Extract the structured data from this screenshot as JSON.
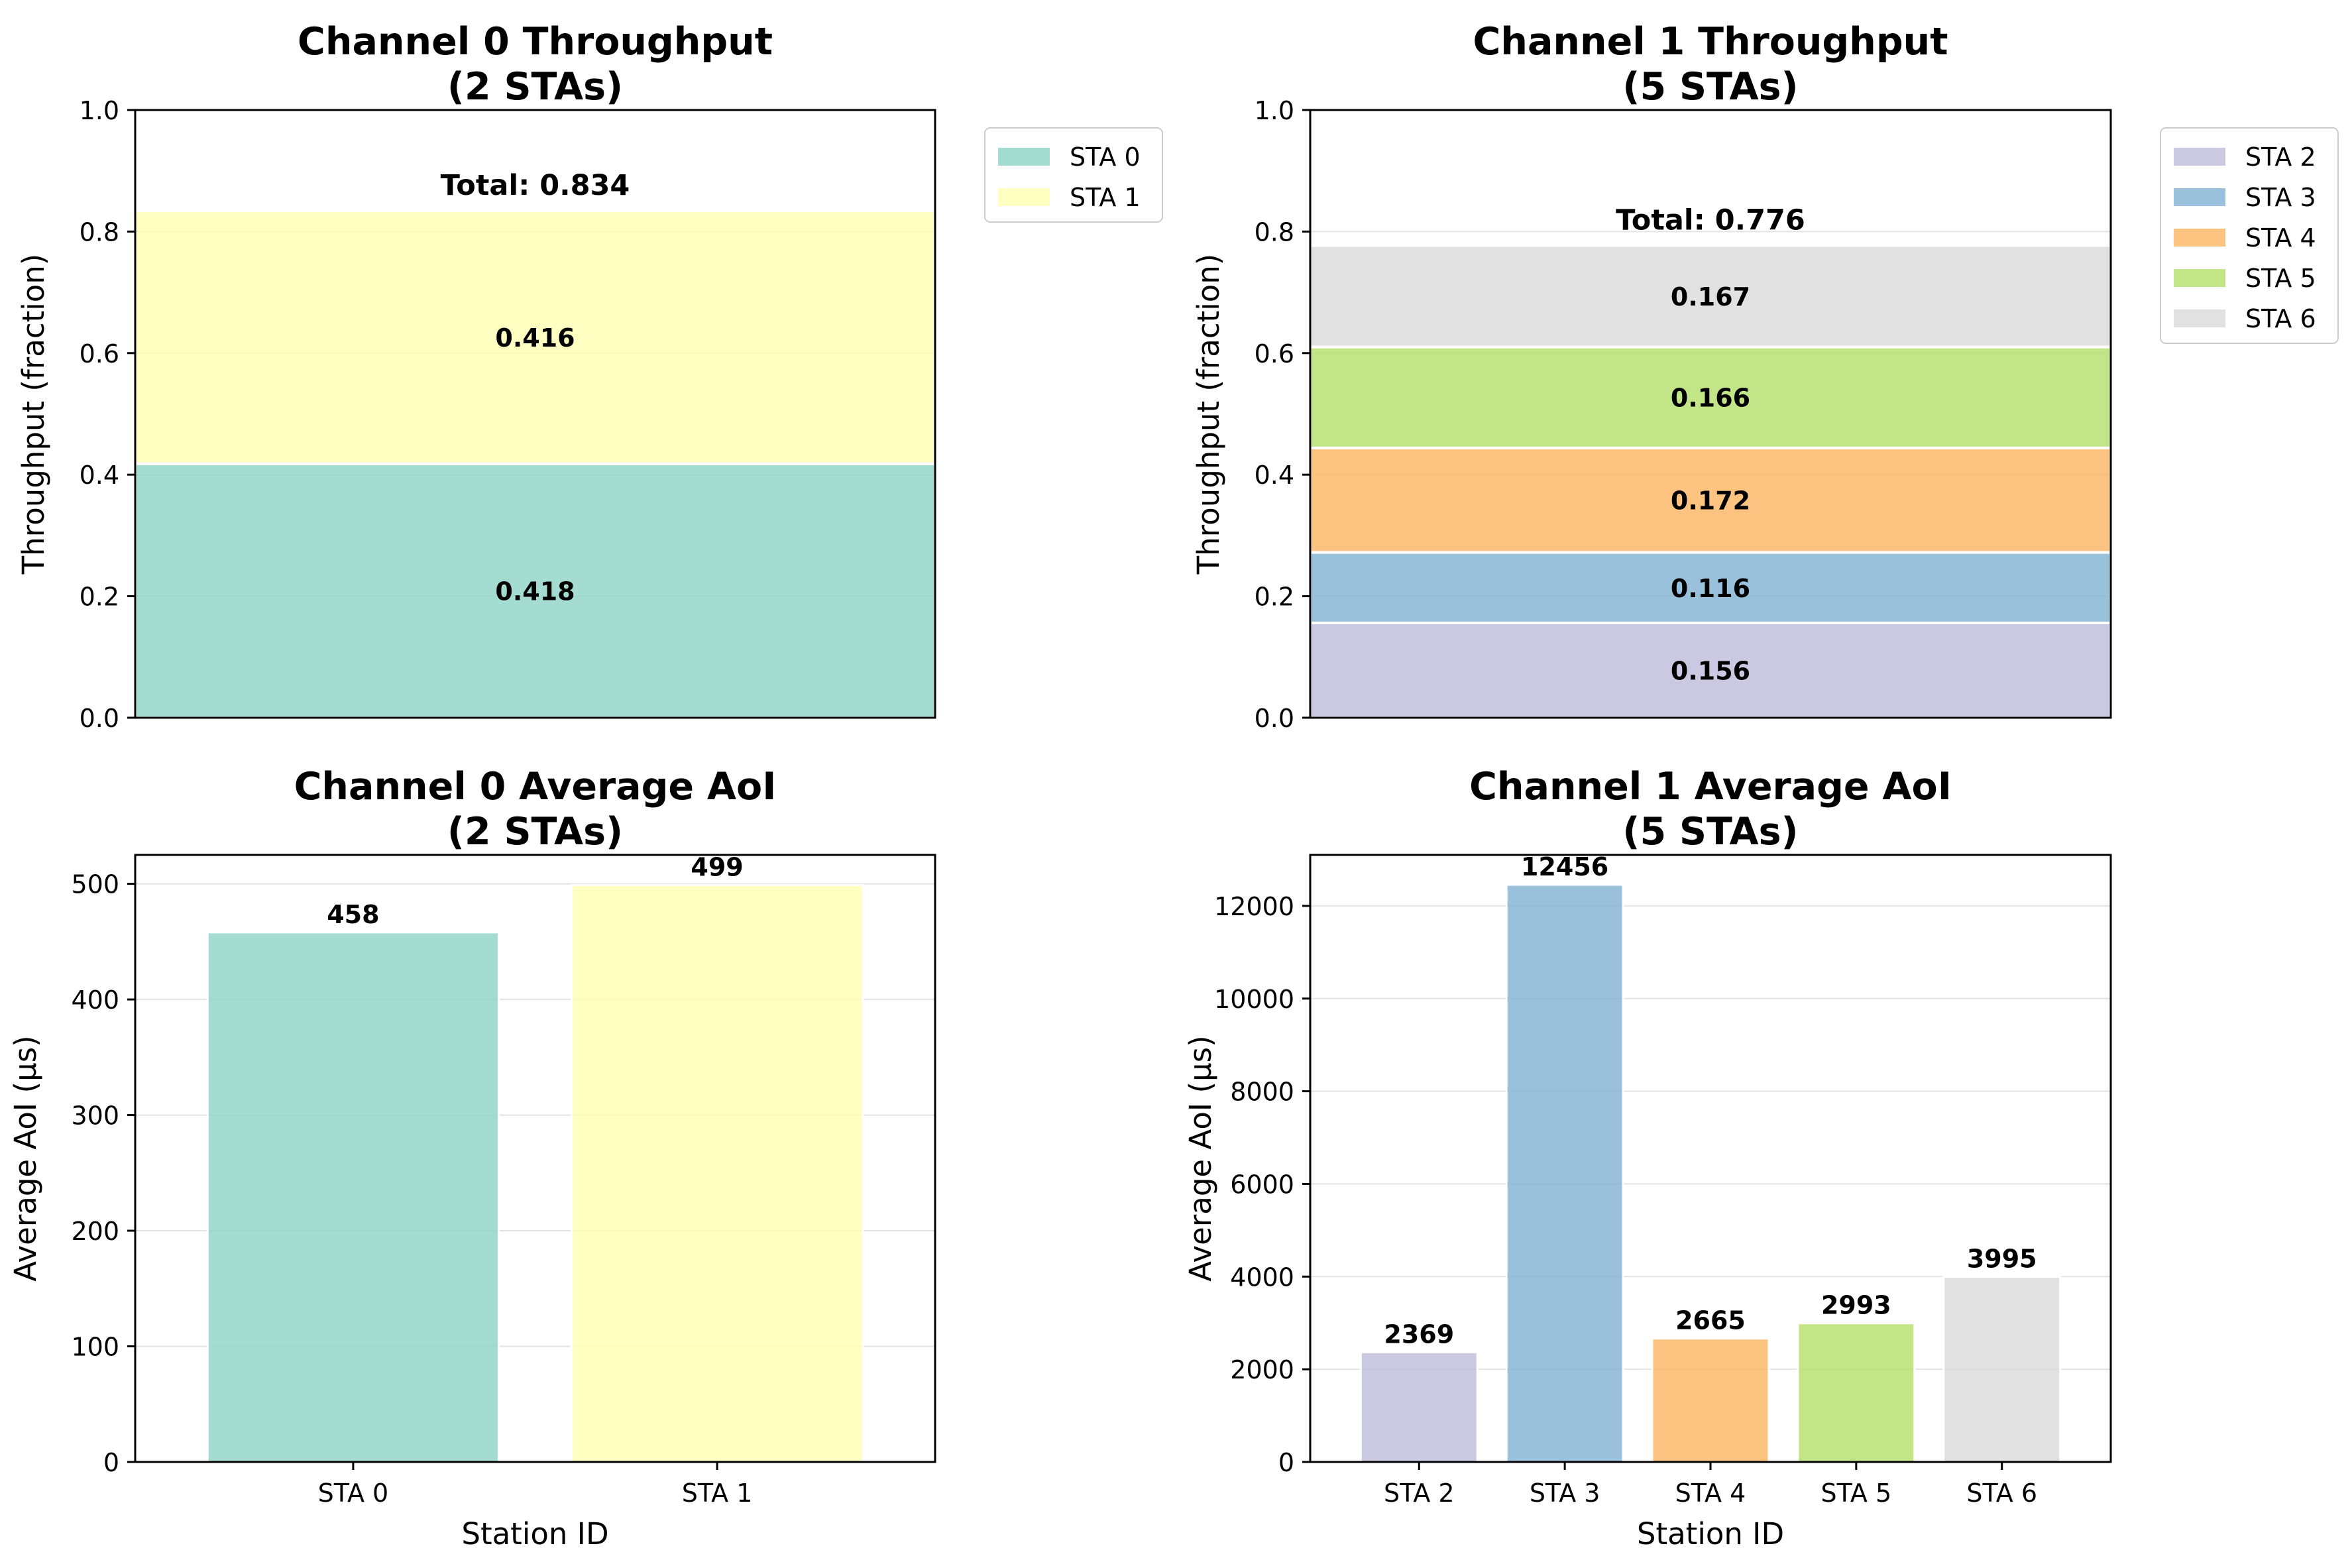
{
  "colors": {
    "STA 0": "#8dd3c7",
    "STA 1": "#ffffb3",
    "STA 2": "#bebada",
    "STA 3": "#80b1d3",
    "STA 4": "#fdb462",
    "STA 5": "#b3de69",
    "STA 6": "#d9d9d9"
  },
  "chart_data": [
    {
      "id": "ch0_tp",
      "type": "bar",
      "stacked": true,
      "title": "Channel 0 Throughput\n(2 STAs)",
      "xlabel": "",
      "ylabel": "Throughput (fraction)",
      "ylim": [
        0,
        1.0
      ],
      "yticks": [
        0.0,
        0.2,
        0.4,
        0.6,
        0.8,
        1.0
      ],
      "ytick_labels": [
        "0.0",
        "0.2",
        "0.4",
        "0.6",
        "0.8",
        "1.0"
      ],
      "grid": true,
      "legend": "outside-top-right",
      "series": [
        {
          "name": "STA 0",
          "value": 0.418,
          "label": "0.418"
        },
        {
          "name": "STA 1",
          "value": 0.416,
          "label": "0.416"
        }
      ],
      "total_label": "Total: 0.834"
    },
    {
      "id": "ch1_tp",
      "type": "bar",
      "stacked": true,
      "title": "Channel 1 Throughput\n(5 STAs)",
      "xlabel": "",
      "ylabel": "Throughput (fraction)",
      "ylim": [
        0,
        1.0
      ],
      "yticks": [
        0.0,
        0.2,
        0.4,
        0.6,
        0.8,
        1.0
      ],
      "ytick_labels": [
        "0.0",
        "0.2",
        "0.4",
        "0.6",
        "0.8",
        "1.0"
      ],
      "grid": true,
      "legend": "outside-top-right",
      "series": [
        {
          "name": "STA 2",
          "value": 0.156,
          "label": "0.156"
        },
        {
          "name": "STA 3",
          "value": 0.116,
          "label": "0.116"
        },
        {
          "name": "STA 4",
          "value": 0.172,
          "label": "0.172"
        },
        {
          "name": "STA 5",
          "value": 0.166,
          "label": "0.166"
        },
        {
          "name": "STA 6",
          "value": 0.167,
          "label": "0.167"
        }
      ],
      "total_label": "Total: 0.776"
    },
    {
      "id": "ch0_aoi",
      "type": "bar",
      "title": "Channel 0 Average AoI\n(2 STAs)",
      "xlabel": "Station ID",
      "ylabel": "Average AoI (μs)",
      "ylim": [
        0,
        525
      ],
      "yticks": [
        0,
        100,
        200,
        300,
        400,
        500
      ],
      "ytick_labels": [
        "0",
        "100",
        "200",
        "300",
        "400",
        "500"
      ],
      "grid": true,
      "categories": [
        "STA 0",
        "STA 1"
      ],
      "values": [
        458,
        499
      ],
      "value_labels": [
        "458",
        "499"
      ]
    },
    {
      "id": "ch1_aoi",
      "type": "bar",
      "title": "Channel 1 Average AoI\n(5 STAs)",
      "xlabel": "Station ID",
      "ylabel": "Average AoI (μs)",
      "ylim": [
        0,
        13100
      ],
      "yticks": [
        0,
        2000,
        4000,
        6000,
        8000,
        10000,
        12000
      ],
      "ytick_labels": [
        "0",
        "2000",
        "4000",
        "6000",
        "8000",
        "10000",
        "12000"
      ],
      "grid": true,
      "categories": [
        "STA 2",
        "STA 3",
        "STA 4",
        "STA 5",
        "STA 6"
      ],
      "values": [
        2369,
        12456,
        2665,
        2993,
        3995
      ],
      "value_labels": [
        "2369",
        "12456",
        "2665",
        "2993",
        "3995"
      ]
    }
  ]
}
